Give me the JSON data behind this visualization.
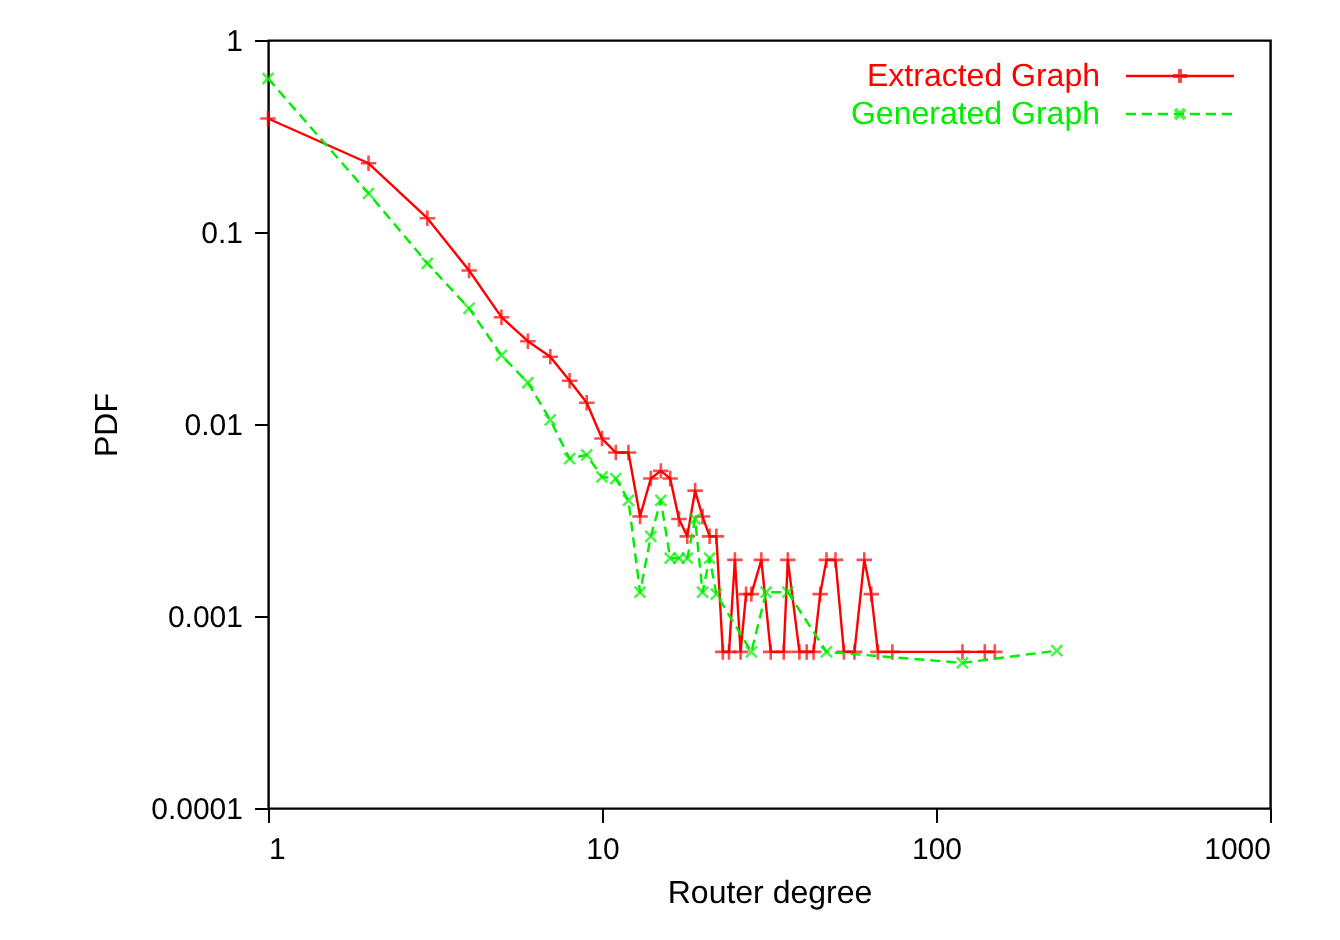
{
  "chart_data": {
    "type": "line",
    "xlabel": "Router degree",
    "ylabel": "PDF",
    "log": "xy",
    "xlim": [
      1,
      1000
    ],
    "ylim": [
      0.0001,
      1
    ],
    "xticks": [
      1,
      10,
      100,
      1000
    ],
    "yticks": [
      0.0001,
      0.001,
      0.01,
      0.1,
      1
    ],
    "grid": false,
    "legend": "top right",
    "series": [
      {
        "name": "Extracted Graph",
        "color": "#ff0000",
        "marker": "cross",
        "line_style": "solid",
        "x": [
          1,
          2,
          3,
          4,
          5,
          6,
          7,
          8,
          9,
          10,
          11,
          12,
          13,
          14,
          15,
          16,
          17,
          18,
          19,
          20,
          21,
          22,
          23,
          24,
          25,
          26,
          27,
          28,
          30,
          32,
          35,
          36,
          39,
          41,
          43,
          45,
          47,
          50,
          53,
          57,
          61,
          64,
          67,
          74,
          120,
          140,
          150
        ],
        "values": [
          0.39,
          0.228,
          0.118,
          0.063,
          0.036,
          0.027,
          0.0224,
          0.0168,
          0.0129,
          0.0084,
          0.0071,
          0.0071,
          0.0033,
          0.0052,
          0.0057,
          0.0052,
          0.0032,
          0.0026,
          0.0045,
          0.0033,
          0.0026,
          0.0026,
          0.00065,
          0.00065,
          0.00196,
          0.00065,
          0.0013,
          0.0013,
          0.00196,
          0.00065,
          0.00065,
          0.00196,
          0.00065,
          0.00065,
          0.00065,
          0.0013,
          0.00196,
          0.00196,
          0.00065,
          0.00065,
          0.00196,
          0.0013,
          0.00065,
          0.00065,
          0.00065,
          0.00065,
          0.00065
        ]
      },
      {
        "name": "Generated Graph",
        "color": "#00ee00",
        "marker": "cross",
        "line_style": "dashed",
        "x": [
          1,
          2,
          3,
          4,
          5,
          6,
          7,
          8,
          9,
          10,
          11,
          12,
          13,
          14,
          15,
          16,
          17,
          18,
          19,
          20,
          21,
          22,
          28,
          31,
          36,
          47,
          120,
          230
        ],
        "values": [
          0.63,
          0.159,
          0.0687,
          0.04,
          0.0228,
          0.0164,
          0.0105,
          0.0066,
          0.0069,
          0.0053,
          0.0052,
          0.004,
          0.00133,
          0.0026,
          0.004,
          0.002,
          0.002,
          0.002,
          0.0032,
          0.00133,
          0.002,
          0.0013,
          0.00065,
          0.00133,
          0.00133,
          0.00065,
          0.00057,
          0.00066
        ]
      }
    ]
  }
}
